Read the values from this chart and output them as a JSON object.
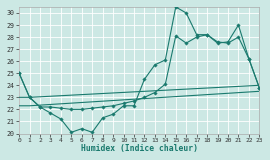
{
  "xlabel": "Humidex (Indice chaleur)",
  "xlim": [
    0,
    23
  ],
  "ylim": [
    20,
    30.5
  ],
  "yticks": [
    20,
    21,
    22,
    23,
    24,
    25,
    26,
    27,
    28,
    29,
    30
  ],
  "xticks": [
    0,
    1,
    2,
    3,
    4,
    5,
    6,
    7,
    8,
    9,
    10,
    11,
    12,
    13,
    14,
    15,
    16,
    17,
    18,
    19,
    20,
    21,
    22,
    23
  ],
  "background_color": "#cce8e4",
  "grid_color": "#b8d8d4",
  "line_color": "#1a7a6e",
  "line1_x": [
    0,
    1,
    2,
    3,
    4,
    5,
    6,
    7,
    8,
    9,
    10,
    11,
    12,
    13,
    14,
    15,
    16,
    17,
    18,
    19,
    20,
    21,
    22,
    23
  ],
  "line1_y": [
    25,
    23,
    22.2,
    21.7,
    21.2,
    20.1,
    20.4,
    20.1,
    21.3,
    21.6,
    22.3,
    22.3,
    24.5,
    25.7,
    26.1,
    30.5,
    30.0,
    28.2,
    28.2,
    27.6,
    27.5,
    28.0,
    26.2,
    23.8
  ],
  "line2_x": [
    0,
    1,
    2,
    3,
    4,
    5,
    6,
    7,
    8,
    9,
    10,
    11,
    12,
    13,
    14,
    15,
    16,
    17,
    18,
    19,
    20,
    21,
    22,
    23
  ],
  "line2_y": [
    25,
    23,
    22.2,
    22.2,
    22.1,
    22.0,
    22.0,
    22.1,
    22.2,
    22.3,
    22.5,
    22.7,
    23.0,
    23.4,
    24.1,
    28.1,
    27.5,
    28.0,
    28.2,
    27.5,
    27.6,
    29.0,
    26.2,
    23.8
  ],
  "line3_x": [
    0,
    1,
    23
  ],
  "line3_y": [
    23.0,
    23.0,
    24.0
  ],
  "line4_x": [
    0,
    1,
    23
  ],
  "line4_y": [
    22.3,
    22.3,
    23.5
  ]
}
